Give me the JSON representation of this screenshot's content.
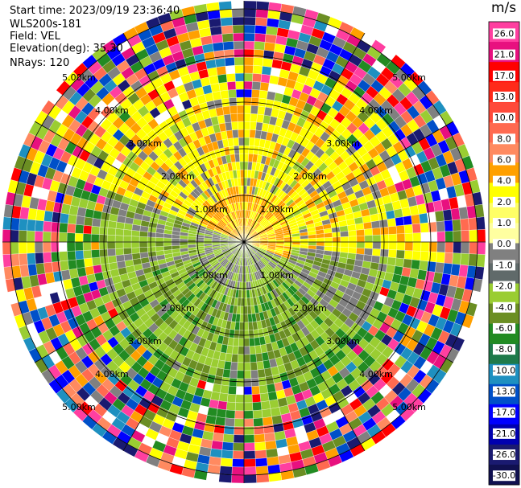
{
  "header": {
    "start_time": "Start time: 2023/09/19 23:36:40",
    "instrument": "WLS200s-181",
    "field": "Field: VEL",
    "elevation": "Elevation(deg): 35.30",
    "nrays": "NRays: 120"
  },
  "chart_data": {
    "type": "heatmap",
    "projection": "polar-ppi",
    "colorbar": {
      "unit": "m/s",
      "labels": [
        "26.0",
        "21.0",
        "17.0",
        "13.0",
        "10.0",
        "8.0",
        "6.0",
        "4.0",
        "2.0",
        "1.0",
        "0.0",
        "-1.0",
        "-2.0",
        "-4.0",
        "-6.0",
        "-8.0",
        "-10.0",
        "-13.0",
        "-17.0",
        "-21.0",
        "-26.0",
        "-30.0"
      ],
      "colors": [
        "#ff3fa0",
        "#e8107f",
        "#ff0000",
        "#ff2a1a",
        "#ff4a3a",
        "#ff6a50",
        "#ff8a60",
        "#ffa000",
        "#ffff00",
        "#ffff66",
        "#ffffa0",
        "#808080",
        "#606a6a",
        "#9acd32",
        "#6b8e23",
        "#228b22",
        "#1e7a4a",
        "#1e90c0",
        "#0050c8",
        "#0000ff",
        "#0000b0",
        "#1a1a70",
        "#101050"
      ]
    },
    "range_rings_km": [
      1.0,
      2.0,
      3.0,
      4.0,
      5.0
    ],
    "ring_labels": [
      "1.00km",
      "2.00km",
      "3.00km",
      "4.00km",
      "5.00km"
    ]
  }
}
